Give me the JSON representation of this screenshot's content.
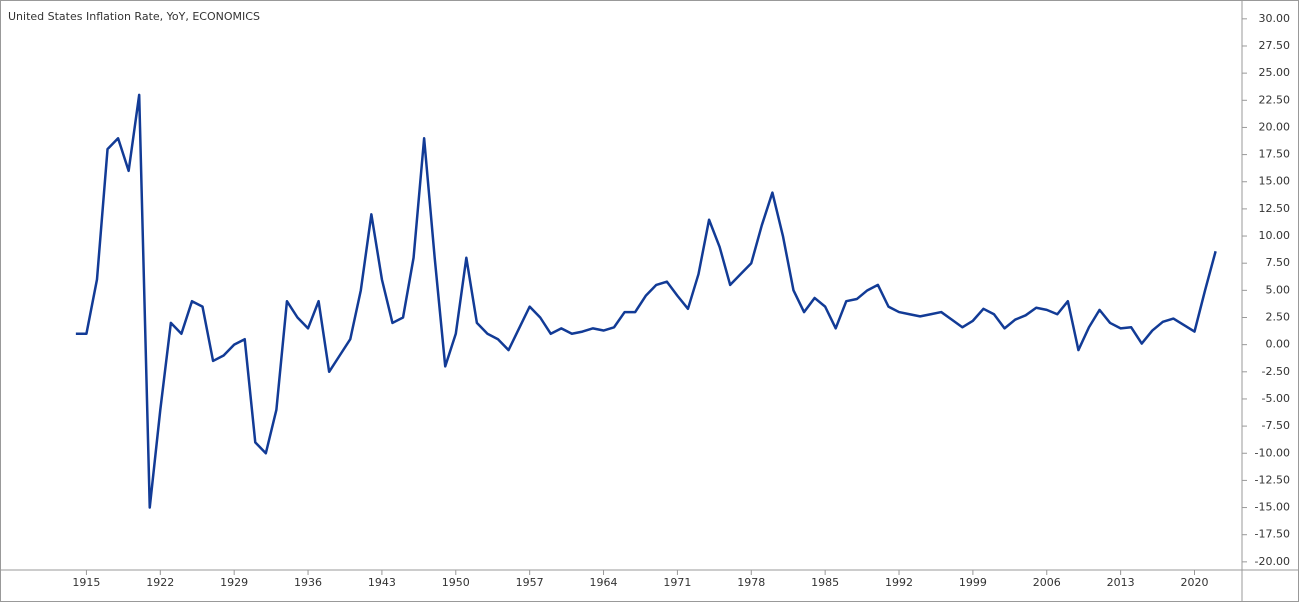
{
  "chart_data": {
    "type": "line",
    "title": "United States Inflation Rate, YoY, ECONOMICS",
    "x": [
      1914,
      1915,
      1916,
      1917,
      1918,
      1919,
      1920,
      1921,
      1922,
      1923,
      1924,
      1925,
      1926,
      1927,
      1928,
      1929,
      1930,
      1931,
      1932,
      1933,
      1934,
      1935,
      1936,
      1937,
      1938,
      1939,
      1940,
      1941,
      1942,
      1943,
      1944,
      1945,
      1946,
      1947,
      1948,
      1949,
      1950,
      1951,
      1952,
      1953,
      1954,
      1955,
      1956,
      1957,
      1958,
      1959,
      1960,
      1961,
      1962,
      1963,
      1964,
      1965,
      1966,
      1967,
      1968,
      1969,
      1970,
      1971,
      1972,
      1973,
      1974,
      1975,
      1976,
      1977,
      1978,
      1979,
      1980,
      1981,
      1982,
      1983,
      1984,
      1985,
      1986,
      1987,
      1988,
      1989,
      1990,
      1991,
      1992,
      1993,
      1994,
      1995,
      1996,
      1997,
      1998,
      1999,
      2000,
      2001,
      2002,
      2003,
      2004,
      2005,
      2006,
      2007,
      2008,
      2009,
      2010,
      2011,
      2012,
      2013,
      2014,
      2015,
      2016,
      2017,
      2018,
      2019,
      2020,
      2021,
      2022
    ],
    "series": [
      {
        "name": "United States Inflation Rate",
        "color": "#123b96",
        "values": [
          1,
          1,
          6,
          18,
          19,
          16,
          23,
          -15,
          -6,
          2,
          1,
          4,
          3.5,
          -1.5,
          -1,
          0,
          0.5,
          -9,
          -10,
          -6,
          4,
          2.5,
          1.5,
          4,
          -2.5,
          -1,
          0.5,
          5,
          12,
          6,
          2,
          2.5,
          8,
          19,
          8,
          -2,
          1,
          8,
          2,
          1,
          0.5,
          -0.5,
          1.5,
          3.5,
          2.5,
          1,
          1.5,
          1,
          1.2,
          1.5,
          1.3,
          1.6,
          3,
          3,
          4.5,
          5.5,
          5.8,
          4.5,
          3.3,
          6.5,
          11.5,
          9,
          5.5,
          6.5,
          7.5,
          11,
          14,
          10,
          5,
          3,
          4.3,
          3.5,
          1.5,
          4,
          4.2,
          5,
          5.5,
          3.5,
          3,
          2.8,
          2.6,
          2.8,
          3,
          2.3,
          1.6,
          2.2,
          3.3,
          2.8,
          1.5,
          2.3,
          2.7,
          3.4,
          3.2,
          2.8,
          4,
          -0.5,
          1.6,
          3.2,
          2,
          1.5,
          1.6,
          0.1,
          1.3,
          2.1,
          2.4,
          1.8,
          1.2,
          5,
          8.6
        ]
      }
    ],
    "xlim": [
      1907,
      2024.5
    ],
    "xticks": [
      1915,
      1922,
      1929,
      1936,
      1943,
      1950,
      1957,
      1964,
      1971,
      1978,
      1985,
      1992,
      1999,
      2006,
      2013,
      2020
    ],
    "ylim": [
      -20.75,
      31.55
    ],
    "yticks": [
      {
        "value": 30,
        "label": "30.00"
      },
      {
        "value": 27.5,
        "label": "27.50"
      },
      {
        "value": 25,
        "label": "25.00"
      },
      {
        "value": 22.5,
        "label": "22.50"
      },
      {
        "value": 20,
        "label": "20.00"
      },
      {
        "value": 17.5,
        "label": "17.50"
      },
      {
        "value": 15,
        "label": "15.00"
      },
      {
        "value": 12.5,
        "label": "12.50"
      },
      {
        "value": 10,
        "label": "10.00"
      },
      {
        "value": 7.5,
        "label": "7.50"
      },
      {
        "value": 5,
        "label": "5.00"
      },
      {
        "value": 2.5,
        "label": "2.50"
      },
      {
        "value": 0,
        "label": "0.00"
      },
      {
        "value": -2.5,
        "label": "-2.50"
      },
      {
        "value": -5,
        "label": "-5.00"
      },
      {
        "value": -7.5,
        "label": "-7.50"
      },
      {
        "value": -10,
        "label": "-10.00"
      },
      {
        "value": -12.5,
        "label": "-12.50"
      },
      {
        "value": -15,
        "label": "-15.00"
      },
      {
        "value": -17.5,
        "label": "-17.50"
      },
      {
        "value": -20,
        "label": "-20.00"
      }
    ]
  }
}
